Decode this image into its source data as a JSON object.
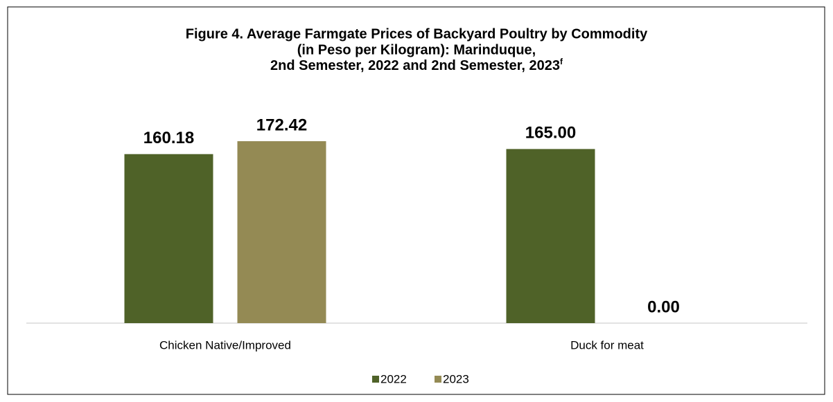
{
  "chart_data": {
    "type": "bar",
    "title": [
      "Figure 4. Average Farmgate Prices of Backyard Poultry by Commodity",
      "(in Peso per Kilogram): Marinduque,",
      "2nd Semester, 2022 and 2nd Semester, 2023"
    ],
    "title_superscript": "f",
    "categories": [
      "Chicken Native/Improved",
      "Duck for meat"
    ],
    "series": [
      {
        "name": "2022",
        "color": "#4f6228",
        "values": [
          160.18,
          165
        ],
        "value_labels": [
          "160.18",
          "165.00"
        ]
      },
      {
        "name": "2023",
        "color": "#948a54",
        "values": [
          172.42,
          0
        ],
        "value_labels": [
          "172.42",
          "0.00"
        ]
      }
    ],
    "ylim": [
      0,
      200
    ],
    "legend": "bottom"
  }
}
